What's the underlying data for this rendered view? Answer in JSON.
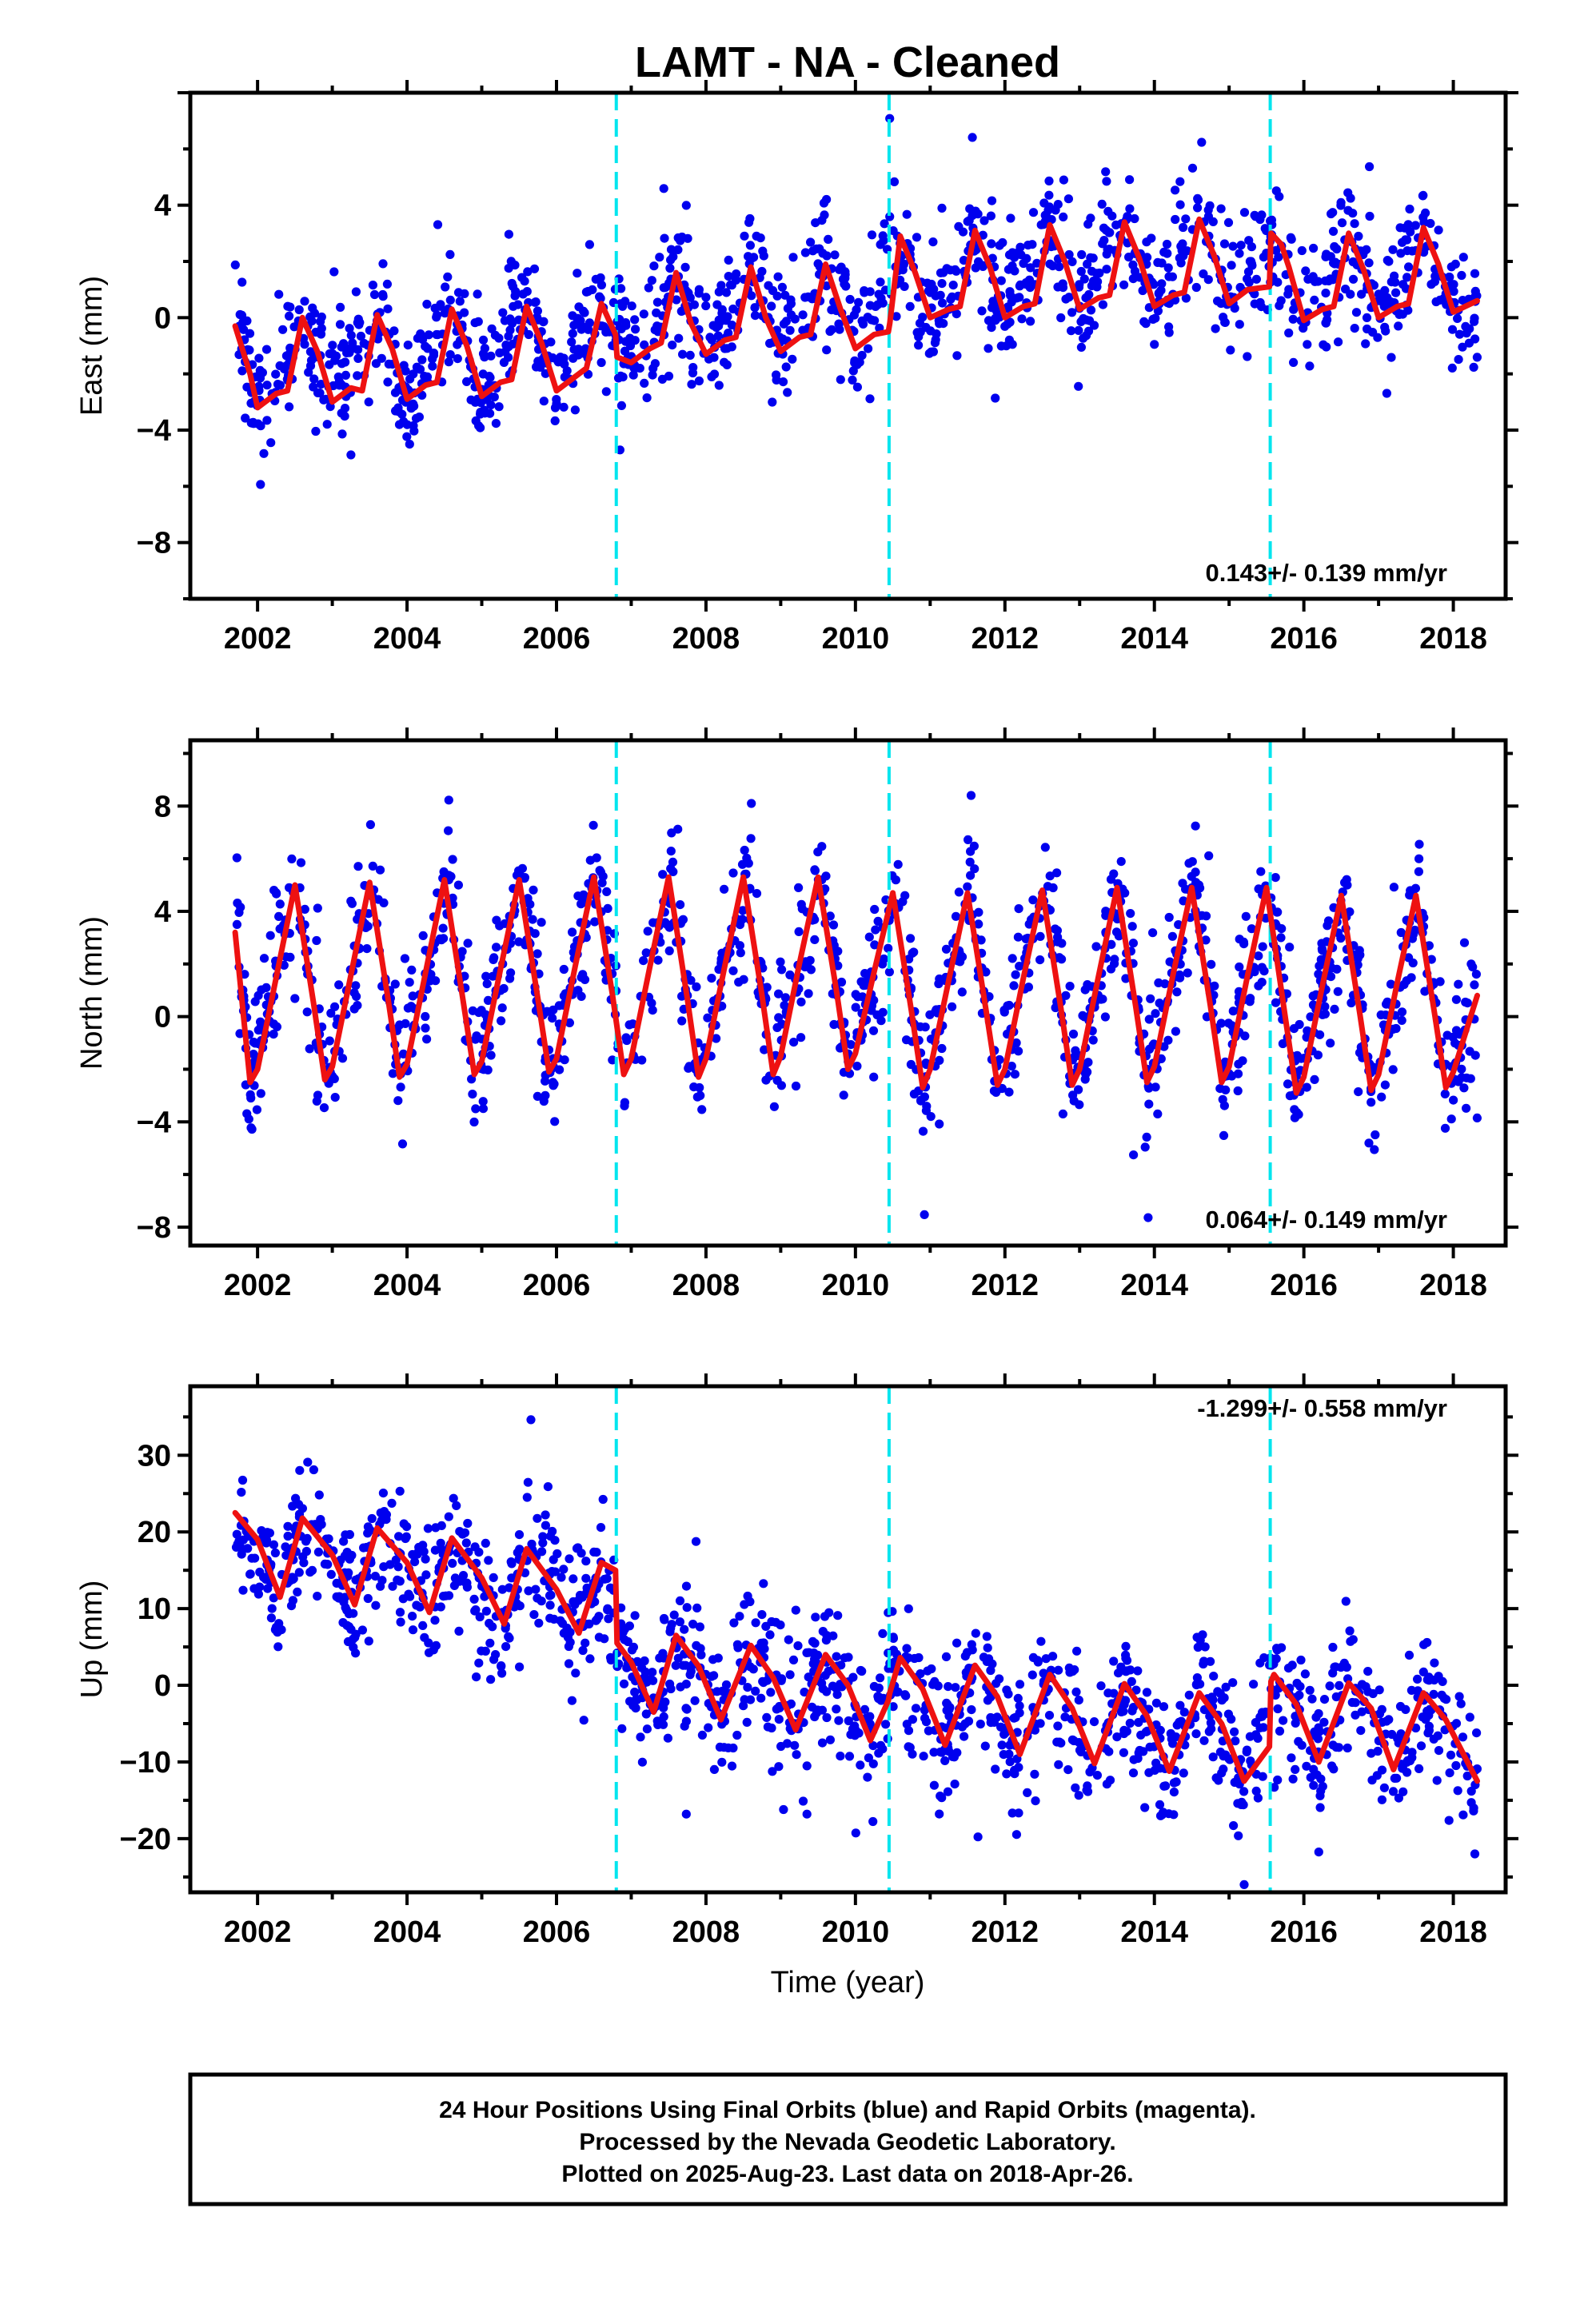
{
  "title": "LAMT  - NA - Cleaned",
  "xlabel": "Time (year)",
  "footer": [
    "24 Hour Positions Using Final Orbits (blue) and Rapid Orbits (magenta).",
    "Processed by the Nevada Geodetic Laboratory.",
    "Plotted on 2025-Aug-23. Last data on 2018-Apr-26."
  ],
  "colors": {
    "points": "#0000ee",
    "fit": "#ee1111",
    "steps": "#00e5ee",
    "frame": "#000000"
  },
  "chart_data": [
    {
      "type": "scatter",
      "ylabel": "East (mm)",
      "xlim": [
        2001.1,
        2018.7
      ],
      "ylim": [
        -10,
        8
      ],
      "xticks": [
        2002,
        2004,
        2006,
        2008,
        2010,
        2012,
        2014,
        2016,
        2018
      ],
      "yticks": [
        -8,
        -4,
        0,
        4
      ],
      "rate": "0.143+/- 0.139 mm/yr",
      "rate_position": "bottom-right",
      "step_epochs": [
        2006.8,
        2010.45,
        2015.55
      ],
      "data_start": 2001.7,
      "data_end": 2018.32,
      "series": [
        {
          "name": "Final Orbits",
          "description": "daily positions",
          "x": [
            2001.7,
            2002.0,
            2002.6,
            2003.0,
            2003.6,
            2004.0,
            2004.6,
            2005.0,
            2005.6,
            2006.0,
            2006.6,
            2007.0,
            2007.6,
            2008.0,
            2008.6,
            2009.0,
            2009.6,
            2010.0,
            2010.6,
            2011.0,
            2011.6,
            2012.0,
            2012.6,
            2013.0,
            2013.6,
            2014.0,
            2014.6,
            2015.0,
            2015.6,
            2016.0,
            2016.6,
            2017.0,
            2017.6,
            2018.0,
            2018.3
          ],
          "y": [
            -0.5,
            -3.1,
            0.0,
            -2.8,
            0.1,
            -2.7,
            0.3,
            -2.8,
            0.4,
            -2.4,
            0.4,
            -1.5,
            1.6,
            -1.1,
            1.8,
            -0.8,
            1.9,
            -0.6,
            2.9,
            0.0,
            3.1,
            0.0,
            3.3,
            0.5,
            3.4,
            0.6,
            3.5,
            0.7,
            3.0,
            0.1,
            3.0,
            0.1,
            3.2,
            0.2,
            0.6
          ],
          "scatter_sd": 1.1
        },
        {
          "name": "Model fit",
          "x": [
            2001.7,
            2001.9,
            2002.0,
            2002.25,
            2002.4,
            2002.6,
            2002.8,
            2003.0,
            2003.25,
            2003.4,
            2003.6,
            2003.8,
            2004.0,
            2004.25,
            2004.4,
            2004.6,
            2004.8,
            2005.0,
            2005.25,
            2005.4,
            2005.6,
            2005.8,
            2006.0,
            2006.25,
            2006.4,
            2006.6,
            2006.79,
            2006.81,
            2007.0,
            2007.25,
            2007.4,
            2007.6,
            2007.8,
            2008.0,
            2008.25,
            2008.4,
            2008.6,
            2008.8,
            2009.0,
            2009.25,
            2009.4,
            2009.6,
            2009.8,
            2010.0,
            2010.25,
            2010.44,
            2010.46,
            2010.6,
            2010.8,
            2011.0,
            2011.25,
            2011.4,
            2011.6,
            2011.8,
            2012.0,
            2012.25,
            2012.4,
            2012.6,
            2012.8,
            2013.0,
            2013.25,
            2013.4,
            2013.6,
            2013.8,
            2014.0,
            2014.25,
            2014.4,
            2014.6,
            2014.8,
            2015.0,
            2015.25,
            2015.54,
            2015.56,
            2015.7,
            2015.8,
            2016.0,
            2016.25,
            2016.4,
            2016.6,
            2016.8,
            2017.0,
            2017.25,
            2017.4,
            2017.6,
            2017.8,
            2018.0,
            2018.32
          ],
          "y": [
            -0.3,
            -2.0,
            -3.2,
            -2.7,
            -2.6,
            0.0,
            -1.2,
            -3.0,
            -2.5,
            -2.6,
            0.1,
            -1.1,
            -2.9,
            -2.4,
            -2.3,
            0.3,
            -1.0,
            -2.8,
            -2.3,
            -2.2,
            0.4,
            -0.9,
            -2.6,
            -2.1,
            -1.8,
            0.5,
            -0.6,
            -1.4,
            -1.6,
            -1.1,
            -0.9,
            1.6,
            -0.2,
            -1.3,
            -0.8,
            -0.7,
            1.8,
            0.0,
            -1.2,
            -0.7,
            -0.6,
            1.9,
            0.3,
            -1.1,
            -0.6,
            -0.5,
            -0.2,
            2.9,
            1.6,
            0.0,
            0.3,
            0.4,
            3.1,
            1.8,
            0.0,
            0.4,
            0.5,
            3.3,
            2.0,
            0.3,
            0.7,
            0.8,
            3.4,
            2.1,
            0.4,
            0.8,
            0.9,
            3.5,
            2.2,
            0.5,
            1.0,
            1.1,
            3.0,
            2.6,
            1.8,
            -0.1,
            0.3,
            0.4,
            3.0,
            1.7,
            0.0,
            0.4,
            0.5,
            3.2,
            1.9,
            0.2,
            0.6
          ]
        }
      ]
    },
    {
      "type": "scatter",
      "ylabel": "North (mm)",
      "xlim": [
        2001.1,
        2018.7
      ],
      "ylim": [
        -8.7,
        10.5
      ],
      "xticks": [
        2002,
        2004,
        2006,
        2008,
        2010,
        2012,
        2014,
        2016,
        2018
      ],
      "yticks": [
        -8,
        -4,
        0,
        4,
        8
      ],
      "rate": "0.064+/- 0.149 mm/yr",
      "rate_position": "bottom-right",
      "step_epochs": [
        2006.8,
        2010.45,
        2015.55
      ],
      "data_start": 2001.7,
      "data_end": 2018.32,
      "series": [
        {
          "name": "Final Orbits",
          "description": "daily positions",
          "x": [
            2001.7,
            2001.9,
            2002.55,
            2002.9,
            2003.55,
            2003.9,
            2004.55,
            2004.9,
            2005.55,
            2005.9,
            2006.55,
            2006.9,
            2007.55,
            2007.9,
            2008.55,
            2008.9,
            2009.55,
            2009.9,
            2010.55,
            2010.9,
            2011.55,
            2011.9,
            2012.55,
            2012.9,
            2013.55,
            2013.9,
            2014.55,
            2014.9,
            2015.55,
            2015.9,
            2016.55,
            2016.9,
            2017.55,
            2017.9,
            2018.3
          ],
          "y": [
            3.2,
            -2.5,
            5.0,
            -2.4,
            5.1,
            -2.3,
            5.2,
            -2.2,
            5.2,
            -2.1,
            5.3,
            -2.2,
            5.3,
            -2.3,
            5.3,
            -2.2,
            5.3,
            -2.0,
            4.7,
            -2.7,
            4.7,
            -2.6,
            4.8,
            -2.6,
            4.9,
            -2.5,
            4.9,
            -2.5,
            4.9,
            -2.9,
            4.6,
            -2.8,
            4.6,
            -2.7,
            0.8
          ],
          "scatter_sd": 1.3
        },
        {
          "name": "Model fit",
          "x": [
            2001.7,
            2001.9,
            2002.0,
            2002.25,
            2002.5,
            2002.75,
            2002.9,
            2003.0,
            2003.25,
            2003.5,
            2003.75,
            2003.9,
            2004.0,
            2004.25,
            2004.5,
            2004.75,
            2004.9,
            2005.0,
            2005.25,
            2005.5,
            2005.75,
            2005.9,
            2006.0,
            2006.25,
            2006.5,
            2006.75,
            2006.9,
            2007.0,
            2007.25,
            2007.5,
            2007.75,
            2007.9,
            2008.0,
            2008.25,
            2008.5,
            2008.75,
            2008.9,
            2009.0,
            2009.25,
            2009.5,
            2009.75,
            2009.9,
            2010.0,
            2010.25,
            2010.5,
            2010.75,
            2010.9,
            2011.0,
            2011.25,
            2011.5,
            2011.75,
            2011.9,
            2012.0,
            2012.25,
            2012.5,
            2012.75,
            2012.9,
            2013.0,
            2013.25,
            2013.5,
            2013.75,
            2013.9,
            2014.0,
            2014.25,
            2014.5,
            2014.75,
            2014.9,
            2015.0,
            2015.25,
            2015.5,
            2015.75,
            2015.9,
            2016.0,
            2016.25,
            2016.5,
            2016.75,
            2016.9,
            2017.0,
            2017.25,
            2017.5,
            2017.75,
            2017.9,
            2018.0,
            2018.32
          ],
          "y": [
            3.2,
            -2.5,
            -2.0,
            1.5,
            5.0,
            0.5,
            -2.4,
            -1.9,
            1.6,
            5.1,
            0.6,
            -2.3,
            -1.8,
            1.7,
            5.2,
            0.6,
            -2.2,
            -1.7,
            1.8,
            5.2,
            0.7,
            -2.1,
            -1.6,
            1.9,
            5.3,
            0.8,
            -2.2,
            -1.6,
            1.9,
            5.3,
            0.7,
            -2.3,
            -1.6,
            1.9,
            5.3,
            0.8,
            -2.2,
            -1.5,
            2.0,
            5.3,
            0.9,
            -2.0,
            -1.4,
            1.7,
            4.7,
            0.2,
            -2.7,
            -2.0,
            1.4,
            4.7,
            0.2,
            -2.6,
            -2.0,
            1.5,
            4.8,
            0.3,
            -2.6,
            -2.0,
            1.5,
            4.9,
            0.4,
            -2.5,
            -1.9,
            1.6,
            4.9,
            0.4,
            -2.5,
            -1.9,
            1.6,
            4.9,
            0.0,
            -2.9,
            -2.3,
            1.2,
            4.6,
            0.1,
            -2.8,
            -2.2,
            1.3,
            4.6,
            0.1,
            -2.7,
            -2.1,
            0.8
          ]
        }
      ]
    },
    {
      "type": "scatter",
      "ylabel": "Up (mm)",
      "xlim": [
        2001.1,
        2018.7
      ],
      "ylim": [
        -27,
        39
      ],
      "xticks": [
        2002,
        2004,
        2006,
        2008,
        2010,
        2012,
        2014,
        2016,
        2018
      ],
      "yticks": [
        -20,
        -10,
        0,
        10,
        20,
        30
      ],
      "rate": "-1.299+/- 0.558 mm/yr",
      "rate_position": "top-right",
      "step_epochs": [
        2006.8,
        2010.45,
        2015.55
      ],
      "data_start": 2001.7,
      "data_end": 2018.32,
      "series": [
        {
          "name": "Final Orbits",
          "description": "daily positions",
          "x": [
            2001.7,
            2002.3,
            2002.6,
            2003.3,
            2003.6,
            2004.3,
            2004.6,
            2005.3,
            2005.6,
            2006.3,
            2006.6,
            2006.9,
            2007.3,
            2007.6,
            2008.2,
            2008.6,
            2009.2,
            2009.6,
            2010.2,
            2010.6,
            2011.2,
            2011.6,
            2012.2,
            2012.6,
            2013.2,
            2013.6,
            2014.2,
            2014.6,
            2015.2,
            2015.6,
            2016.2,
            2016.6,
            2017.2,
            2017.6,
            2018.3
          ],
          "y": [
            22.5,
            11.5,
            21.8,
            10.5,
            20.5,
            9.5,
            19.2,
            8.0,
            17.8,
            6.8,
            16.0,
            4.0,
            -3.5,
            6.5,
            -4.5,
            5.2,
            -5.8,
            4.0,
            -7.2,
            3.6,
            -7.8,
            2.6,
            -9.0,
            1.4,
            -10.2,
            0.2,
            -11.2,
            -1.0,
            -12.5,
            1.4,
            -10.0,
            0.3,
            -11.0,
            -1.0,
            -12.5
          ],
          "scatter_sd": 4.4
        },
        {
          "name": "Model fit",
          "x": [
            2001.7,
            2002.0,
            2002.3,
            2002.6,
            2003.0,
            2003.3,
            2003.6,
            2004.0,
            2004.3,
            2004.6,
            2005.0,
            2005.3,
            2005.6,
            2006.0,
            2006.3,
            2006.6,
            2006.79,
            2006.81,
            2007.0,
            2007.3,
            2007.6,
            2007.9,
            2008.2,
            2008.6,
            2008.9,
            2009.2,
            2009.6,
            2009.9,
            2010.2,
            2010.44,
            2010.46,
            2010.6,
            2010.9,
            2011.2,
            2011.6,
            2011.9,
            2012.2,
            2012.6,
            2012.9,
            2013.2,
            2013.6,
            2013.9,
            2014.2,
            2014.6,
            2014.9,
            2015.2,
            2015.54,
            2015.56,
            2015.6,
            2015.9,
            2016.2,
            2016.6,
            2016.9,
            2017.2,
            2017.6,
            2017.9,
            2018.32
          ],
          "y": [
            22.5,
            19.0,
            11.5,
            21.8,
            17.0,
            10.5,
            20.5,
            16.0,
            9.5,
            19.2,
            14.0,
            8.0,
            17.8,
            12.5,
            6.8,
            16.0,
            15.0,
            5.5,
            3.0,
            -3.5,
            6.5,
            2.5,
            -4.5,
            5.2,
            1.0,
            -5.8,
            4.0,
            0.0,
            -7.2,
            -2.0,
            -1.0,
            3.6,
            -0.5,
            -7.8,
            2.6,
            -1.5,
            -9.0,
            1.4,
            -3.0,
            -10.2,
            0.2,
            -4.0,
            -11.2,
            -1.0,
            -5.0,
            -12.5,
            -8.0,
            0.5,
            1.4,
            -2.5,
            -10.0,
            0.3,
            -3.0,
            -11.0,
            -1.0,
            -4.5,
            -12.5
          ]
        }
      ]
    }
  ]
}
